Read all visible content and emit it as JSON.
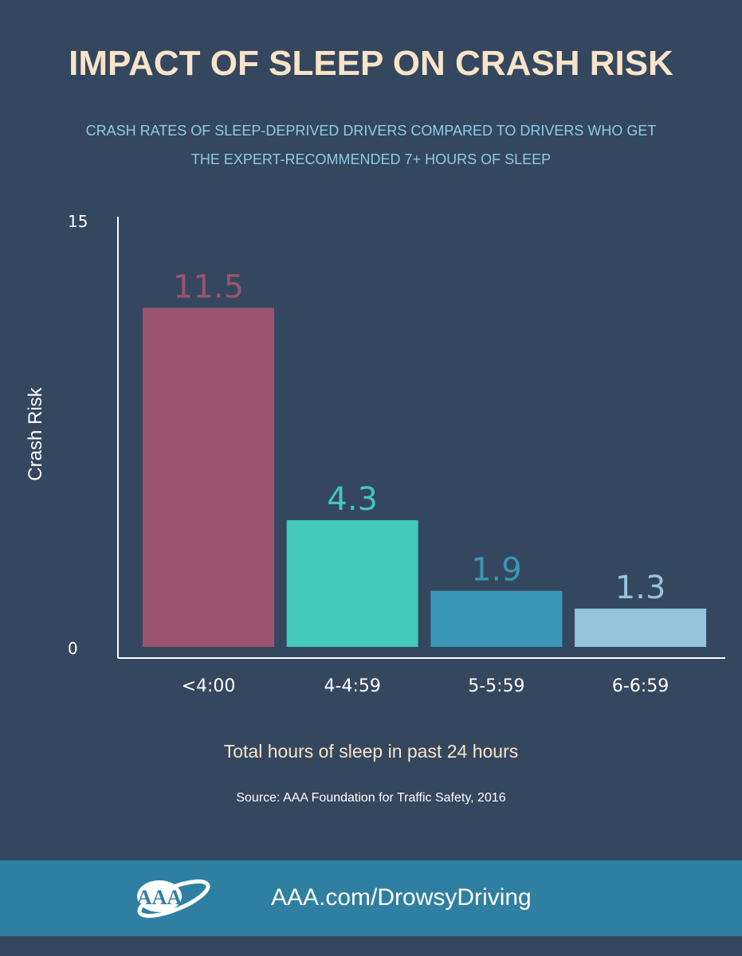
{
  "chart_data": {
    "type": "bar",
    "title": "IMPACT OF SLEEP ON CRASH RISK",
    "subtitle": [
      "CRASH RATES OF SLEEP-DEPRIVED DRIVERS COMPARED TO DRIVERS WHO GET",
      "THE EXPERT-RECOMMENDED 7+ HOURS OF SLEEP"
    ],
    "categories": [
      "<4:00",
      "4-4:59",
      "5-5:59",
      "6-6:59"
    ],
    "values": [
      11.5,
      4.3,
      1.9,
      1.3
    ],
    "value_labels": [
      "11.5",
      "4.3",
      "1.9",
      "1.3"
    ],
    "bar_colors": [
      "#9a5470",
      "#42c9b8",
      "#3a97b8",
      "#94c5dd"
    ],
    "label_colors": [
      "#9a5470",
      "#42c9b8",
      "#3a97b8",
      "#94c5dd"
    ],
    "xlabel": "Total hours of sleep in past 24 hours",
    "ylabel": "Crash Risk",
    "ylim": [
      0,
      15
    ],
    "yticks": [
      "0",
      "15"
    ],
    "grid": false,
    "source": "Source: AAA Foundation for Traffic Safety, 2016"
  },
  "footer": {
    "logo": "AAA",
    "url": "AAA.com/DrowsyDriving"
  }
}
